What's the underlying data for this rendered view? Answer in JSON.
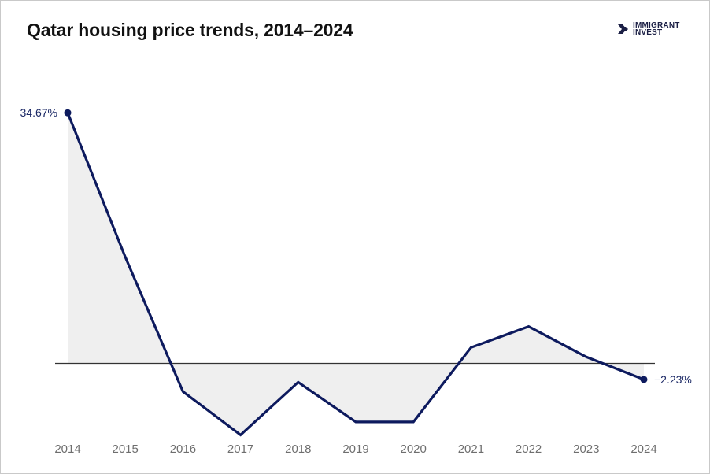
{
  "header": {
    "title": "Qatar housing price trends, 2014–2024",
    "logo_line1": "IMMIGRANT",
    "logo_line2": "INVEST"
  },
  "colors": {
    "line": "#0d1a5e",
    "area": "#efefef",
    "baseline": "#333333",
    "tick_text": "#6e6e6e"
  },
  "chart_data": {
    "type": "area",
    "title": "Qatar housing price trends, 2014–2024",
    "xlabel": "",
    "ylabel": "",
    "x": [
      "2014",
      "2015",
      "2016",
      "2017",
      "2018",
      "2019",
      "2020",
      "2021",
      "2022",
      "2023",
      "2024"
    ],
    "series": [
      {
        "values": [
          34.67,
          14.7,
          -3.9,
          -9.9,
          -2.6,
          -8.1,
          -8.1,
          2.2,
          5.1,
          0.9,
          -2.23
        ]
      }
    ],
    "ylim": [
      -10,
      35
    ],
    "grid": false,
    "data_labels": [
      {
        "index": 0,
        "text": "34.67%"
      },
      {
        "index": 10,
        "text": "−2.23%"
      }
    ]
  }
}
